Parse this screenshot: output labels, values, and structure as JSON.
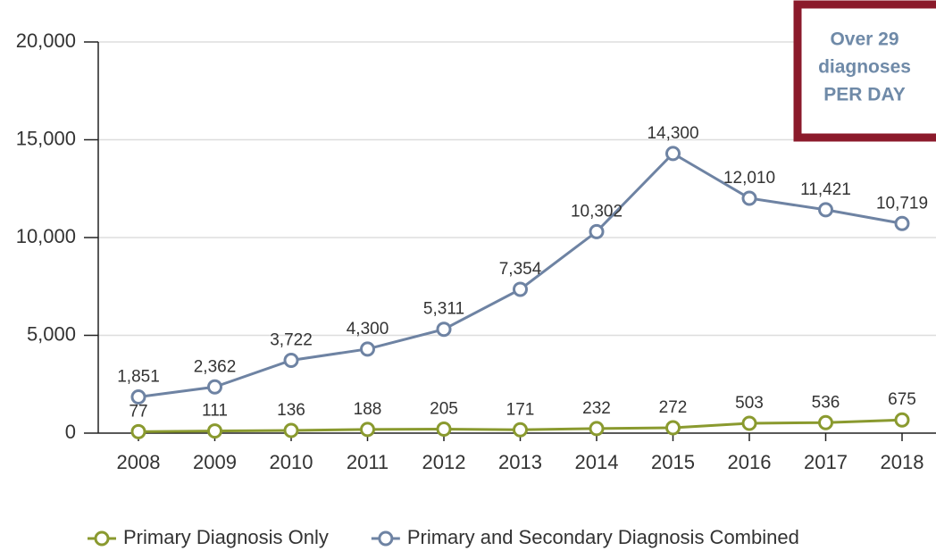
{
  "chart_data": {
    "type": "line",
    "categories": [
      "2008",
      "2009",
      "2010",
      "2011",
      "2012",
      "2013",
      "2014",
      "2015",
      "2016",
      "2017",
      "2018"
    ],
    "series": [
      {
        "name": "Primary Diagnosis Only",
        "color": "#8a9a2f",
        "values": [
          77,
          111,
          136,
          188,
          205,
          171,
          232,
          272,
          503,
          536,
          675
        ]
      },
      {
        "name": "Primary and Secondary Diagnosis Combined",
        "color": "#6e83a3",
        "values": [
          1851,
          2362,
          3722,
          4300,
          5311,
          7354,
          10302,
          14300,
          12010,
          11421,
          10719
        ],
        "value_labels": [
          "1,851",
          "2,362",
          "3,722",
          "4,300",
          "5,311",
          "7,354",
          "10,302",
          "14,300",
          "12,010",
          "11,421",
          "10,719"
        ]
      }
    ],
    "ylim": [
      0,
      20000
    ],
    "yticks": [
      0,
      {
        "value": 5000,
        "label": "5,000"
      },
      {
        "value": 10000,
        "label": "10,000"
      },
      {
        "value": 15000,
        "label": "15,000"
      },
      {
        "value": 20000,
        "label": "20,000"
      }
    ],
    "grid": true,
    "legend": "bottom",
    "annotation": {
      "lines": [
        "Over 29",
        "diagnoses",
        "PER DAY"
      ],
      "border_color": "#8b1a2b"
    }
  }
}
